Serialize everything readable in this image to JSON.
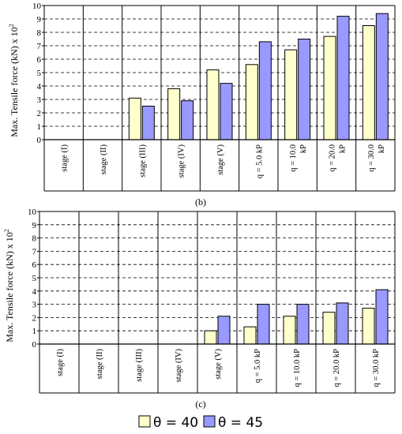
{
  "colors": {
    "theta40": "#ffffcc",
    "theta45": "#9999ff",
    "outline": "#000000",
    "grid": "#000000"
  },
  "legend": [
    {
      "label": "θ = 40",
      "color": "#ffffcc"
    },
    {
      "label": "θ = 45",
      "color": "#9999ff"
    }
  ],
  "chart_data": [
    {
      "type": "bar",
      "panel_label": "(b)",
      "ylabel": "Max. Tensile force (kN) x 10",
      "ylabel_exponent": "2",
      "ylim": [
        0,
        10
      ],
      "yticks": [
        "0",
        "1",
        "2",
        "3",
        "4",
        "5",
        "6",
        "7",
        "8",
        "9",
        "10"
      ],
      "grid": "dashed horizontal",
      "categories": [
        [
          "stage (I)"
        ],
        [
          "stage (II)"
        ],
        [
          "stage (III)"
        ],
        [
          "stage (IV)"
        ],
        [
          "stage (V)"
        ],
        [
          "q = 5.0 kP"
        ],
        [
          "q = 10.0",
          "kP"
        ],
        [
          "q = 20.0",
          "kP"
        ],
        [
          "q = 30.0",
          "kP"
        ]
      ],
      "series": [
        {
          "name": "θ = 40",
          "values": [
            0,
            0,
            3.1,
            3.8,
            5.2,
            5.6,
            6.7,
            7.7,
            8.5
          ]
        },
        {
          "name": "θ = 45",
          "values": [
            0,
            0,
            2.5,
            2.9,
            4.2,
            7.3,
            7.5,
            9.2,
            9.4
          ]
        }
      ]
    },
    {
      "type": "bar",
      "panel_label": "(c)",
      "ylabel": "Max. Tensile force (kN) x 10",
      "ylabel_exponent": "2",
      "ylim": [
        0,
        10
      ],
      "yticks": [
        "0",
        "1",
        "2",
        "3",
        "4",
        "5",
        "6",
        "7",
        "8",
        "9",
        "10"
      ],
      "grid": "dashed horizontal",
      "categories": [
        [
          "stage (I)"
        ],
        [
          "stage (II)"
        ],
        [
          "stage (III)"
        ],
        [
          "stage (IV)"
        ],
        [
          "stage (V)"
        ],
        [
          "q = 5.0 kP"
        ],
        [
          "q = 10.0 kP"
        ],
        [
          "q = 20.0 kP"
        ],
        [
          "q = 30.0 kP"
        ]
      ],
      "series": [
        {
          "name": "θ = 40",
          "values": [
            0,
            0,
            0,
            0,
            1.0,
            1.3,
            2.1,
            2.4,
            2.7
          ]
        },
        {
          "name": "θ = 45",
          "values": [
            0,
            0,
            0,
            0,
            2.1,
            3.0,
            3.0,
            3.1,
            4.1
          ]
        }
      ]
    }
  ]
}
